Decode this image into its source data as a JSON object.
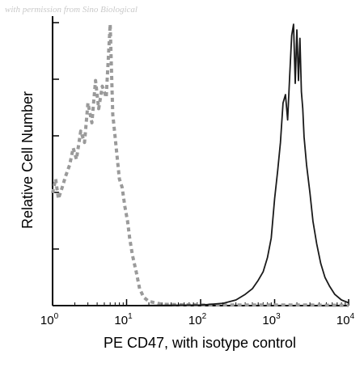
{
  "watermark": "with permission from Sino Biological",
  "chart_data": {
    "type": "line",
    "xlabel": "PE CD47, with isotype control",
    "ylabel": "Relative Cell Number",
    "x_scale": "log",
    "xlim": [
      1,
      10000
    ],
    "x_ticks": [
      {
        "base": "10",
        "exp": "0",
        "value": 1
      },
      {
        "base": "10",
        "exp": "1",
        "value": 10
      },
      {
        "base": "10",
        "exp": "2",
        "value": 100
      },
      {
        "base": "10",
        "exp": "3",
        "value": 1000
      },
      {
        "base": "10",
        "exp": "4",
        "value": 10000
      }
    ],
    "y_tick_labels": "none",
    "ylim": [
      0,
      100
    ],
    "grid": false,
    "series": [
      {
        "style": "dashed",
        "color": "#9a9a9a",
        "x": [
          1.0,
          1.1,
          1.2,
          1.35,
          1.5,
          1.7,
          1.9,
          2.1,
          2.4,
          2.7,
          3.0,
          3.4,
          3.8,
          4.2,
          4.7,
          5.3,
          6.0,
          6.5,
          7.0,
          7.5,
          8.0,
          8.7,
          9.5,
          10.3,
          11.0,
          12.0,
          13.5,
          15.0,
          17.0,
          20.0,
          30.0,
          60.0,
          150.0,
          400.0,
          1000.0,
          3000.0,
          10000.0
        ],
        "y": [
          40,
          45,
          38,
          42,
          46,
          50,
          56,
          52,
          62,
          58,
          72,
          65,
          80,
          70,
          78,
          74,
          100,
          68,
          60,
          52,
          45,
          42,
          35,
          30,
          24,
          18,
          12,
          6,
          3,
          1.5,
          0.5,
          0.3,
          0.2,
          0.2,
          0.2,
          0.2,
          0.1
        ]
      },
      {
        "style": "solid",
        "color": "#1a1a1a",
        "x": [
          1.0,
          10.0,
          100.0,
          200.0,
          300.0,
          400.0,
          500.0,
          600.0,
          700.0,
          800.0,
          900.0,
          1000.0,
          1100.0,
          1200.0,
          1300.0,
          1400.0,
          1500.0,
          1600.0,
          1700.0,
          1800.0,
          1900.0,
          2000.0,
          2100.0,
          2200.0,
          2300.0,
          2400.0,
          2500.0,
          2700.0,
          3000.0,
          3300.0,
          3700.0,
          4200.0,
          4800.0,
          5500.0,
          6500.0,
          8000.0,
          10000.0
        ],
        "y": [
          0,
          0,
          0.2,
          0.8,
          2,
          4,
          6,
          9,
          12,
          17,
          24,
          38,
          48,
          58,
          72,
          75,
          66,
          82,
          96,
          100,
          79,
          98,
          80,
          95,
          76,
          70,
          60,
          50,
          40,
          30,
          22,
          15,
          10,
          7,
          4,
          2,
          1
        ]
      }
    ]
  }
}
